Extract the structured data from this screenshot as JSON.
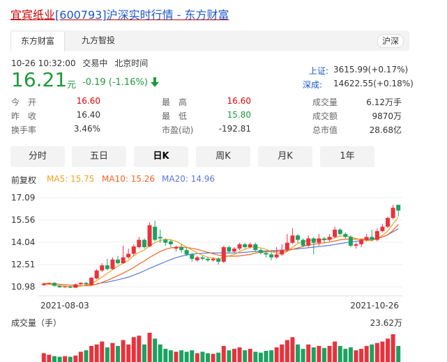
{
  "title": {
    "name": "宜宾纸业",
    "code": "[600793]",
    "rest": "沪深实时行情 - 东方财富"
  },
  "tabs": [
    {
      "label": "东方财富",
      "active": true
    },
    {
      "label": "九方智投",
      "active": false
    }
  ],
  "market_badge": "沪深",
  "meta": {
    "time": "10-26 10:32:00",
    "status": "交易中",
    "tz": "北京时间"
  },
  "price": {
    "value": "16.21",
    "unit": "元",
    "change": "-0.19 (-1.16%)",
    "arrow": "down-arrow-icon"
  },
  "indices": [
    {
      "name": "上证:",
      "value": "3615.99(+0.17%)"
    },
    {
      "name": "深成:",
      "value": "14622.55(+0.18%)"
    }
  ],
  "stats": [
    {
      "label": "今　开",
      "value": "16.60",
      "color": "#e00000"
    },
    {
      "label": "最　高",
      "value": "16.60",
      "color": "#e00000"
    },
    {
      "label": "成交量",
      "value": "6.12万手",
      "color": "#333333"
    },
    {
      "label": "昨　收",
      "value": "16.40",
      "color": "#333333"
    },
    {
      "label": "最　低",
      "value": "15.80",
      "color": "#1d9a3a"
    },
    {
      "label": "成交额",
      "value": "9870万",
      "color": "#333333"
    },
    {
      "label": "换手率",
      "value": "3.46%",
      "color": "#333333"
    },
    {
      "label": "市盈(动)",
      "value": "-192.81",
      "color": "#333333"
    },
    {
      "label": "总市值",
      "value": "28.68亿",
      "color": "#333333"
    }
  ],
  "period_buttons": [
    {
      "label": "分时",
      "active": false
    },
    {
      "label": "五日",
      "active": false
    },
    {
      "label": "日K",
      "active": true
    },
    {
      "label": "周K",
      "active": false
    },
    {
      "label": "月K",
      "active": false
    },
    {
      "label": "1年",
      "active": false
    }
  ],
  "ma_legend": {
    "adj": "前复权",
    "ma5": "MA5: 15.75",
    "ma10": "MA10: 15.26",
    "ma20": "MA20: 14.96"
  },
  "colors": {
    "up": "#e8323c",
    "down": "#1aa260",
    "ma5": "#f0a020",
    "ma10": "#f06420",
    "ma20": "#5a78d8"
  },
  "chart_data": {
    "type": "candlestick",
    "y_ticks": [
      "17.09",
      "15.56",
      "14.04",
      "12.51",
      "10.98"
    ],
    "ylim": [
      10.98,
      17.09
    ],
    "x_labels": [
      "2021-08-03",
      "2021-10-26"
    ],
    "volume_label": "成交量（手）",
    "volume_max_label": "23.62万",
    "candles": [
      [
        11.1,
        11.2,
        11.05,
        11.25
      ],
      [
        11.2,
        11.25,
        11.15,
        11.28
      ],
      [
        11.25,
        11.05,
        11.0,
        11.3
      ],
      [
        11.05,
        10.95,
        10.92,
        11.1
      ],
      [
        10.95,
        11.0,
        10.9,
        11.05
      ],
      [
        11.0,
        10.92,
        10.88,
        11.05
      ],
      [
        10.92,
        11.15,
        10.9,
        11.2
      ],
      [
        11.15,
        11.25,
        11.1,
        11.3
      ],
      [
        11.25,
        11.15,
        11.1,
        11.3
      ],
      [
        11.1,
        11.6,
        11.05,
        11.65
      ],
      [
        11.55,
        12.1,
        11.5,
        12.2
      ],
      [
        12.1,
        12.45,
        12.0,
        12.6
      ],
      [
        12.45,
        12.2,
        12.1,
        12.9
      ],
      [
        12.2,
        12.85,
        12.15,
        13.0
      ],
      [
        12.85,
        12.6,
        12.5,
        13.1
      ],
      [
        12.6,
        13.0,
        12.55,
        13.8
      ],
      [
        13.0,
        13.25,
        12.9,
        13.6
      ],
      [
        13.25,
        13.75,
        13.1,
        13.9
      ],
      [
        13.7,
        14.2,
        13.6,
        14.4
      ],
      [
        14.2,
        13.7,
        13.6,
        14.3
      ],
      [
        13.75,
        15.2,
        13.7,
        15.4
      ],
      [
        15.1,
        14.2,
        14.1,
        15.5
      ],
      [
        14.4,
        14.3,
        14.0,
        14.9
      ],
      [
        14.2,
        14.0,
        13.8,
        14.3
      ],
      [
        14.1,
        13.9,
        13.7,
        14.2
      ],
      [
        13.6,
        13.7,
        13.4,
        13.8
      ],
      [
        13.7,
        13.5,
        13.3,
        13.9
      ],
      [
        13.5,
        13.2,
        13.1,
        13.7
      ],
      [
        13.2,
        12.9,
        12.7,
        13.3
      ],
      [
        12.8,
        13.0,
        12.7,
        13.1
      ],
      [
        13.0,
        12.9,
        12.8,
        13.1
      ],
      [
        12.9,
        12.8,
        12.7,
        13.0
      ],
      [
        12.8,
        12.9,
        12.7,
        13.0
      ],
      [
        12.9,
        12.7,
        12.5,
        13.0
      ],
      [
        12.7,
        13.7,
        12.6,
        13.8
      ],
      [
        13.7,
        13.4,
        13.3,
        13.8
      ],
      [
        13.4,
        13.6,
        13.3,
        13.7
      ],
      [
        13.6,
        13.9,
        13.5,
        14.0
      ],
      [
        13.9,
        13.7,
        13.6,
        14.0
      ],
      [
        13.7,
        13.9,
        13.6,
        14.0
      ],
      [
        13.9,
        13.5,
        13.4,
        14.0
      ],
      [
        13.5,
        13.3,
        13.2,
        13.6
      ],
      [
        13.3,
        13.2,
        13.0,
        13.4
      ],
      [
        13.2,
        13.0,
        12.8,
        13.4
      ],
      [
        13.0,
        13.2,
        12.9,
        13.7
      ],
      [
        13.2,
        13.5,
        13.1,
        13.9
      ],
      [
        13.5,
        14.0,
        13.4,
        14.6
      ],
      [
        14.0,
        14.5,
        13.9,
        15.0
      ],
      [
        14.5,
        14.2,
        14.0,
        14.6
      ],
      [
        14.2,
        13.8,
        13.7,
        14.3
      ],
      [
        13.8,
        14.3,
        13.7,
        14.5
      ],
      [
        14.3,
        14.0,
        13.2,
        14.4
      ],
      [
        14.0,
        14.3,
        13.8,
        14.6
      ],
      [
        14.3,
        14.2,
        14.0,
        14.4
      ],
      [
        14.2,
        14.4,
        14.1,
        14.6
      ],
      [
        14.4,
        14.9,
        14.3,
        15.1
      ],
      [
        14.9,
        14.6,
        14.5,
        15.0
      ],
      [
        14.6,
        14.4,
        14.3,
        14.7
      ],
      [
        14.4,
        13.8,
        13.7,
        14.5
      ],
      [
        13.8,
        13.9,
        13.6,
        14.0
      ],
      [
        13.9,
        14.2,
        13.7,
        14.3
      ],
      [
        14.2,
        14.4,
        14.1,
        14.6
      ],
      [
        14.4,
        14.2,
        14.1,
        14.9
      ],
      [
        14.2,
        14.8,
        14.1,
        15.0
      ],
      [
        14.8,
        15.1,
        14.7,
        15.3
      ],
      [
        15.1,
        15.7,
        15.0,
        15.8
      ],
      [
        15.7,
        16.4,
        15.6,
        16.6
      ],
      [
        16.6,
        16.21,
        15.8,
        16.6
      ]
    ],
    "ma5": [
      11.12,
      11.15,
      11.1,
      11.05,
      11.02,
      11.0,
      10.99,
      11.03,
      11.1,
      11.2,
      11.4,
      11.65,
      11.9,
      12.15,
      12.4,
      12.6,
      12.8,
      13.1,
      13.35,
      13.5,
      13.8,
      14.0,
      14.15,
      14.25,
      14.2,
      14.1,
      13.9,
      13.7,
      13.5,
      13.3,
      13.15,
      13.0,
      12.95,
      12.9,
      13.0,
      13.1,
      13.2,
      13.4,
      13.55,
      13.7,
      13.7,
      13.65,
      13.55,
      13.4,
      13.3,
      13.25,
      13.4,
      13.7,
      13.95,
      14.1,
      14.15,
      14.2,
      14.2,
      14.2,
      14.25,
      14.35,
      14.45,
      14.5,
      14.4,
      14.3,
      14.2,
      14.15,
      14.15,
      14.3,
      14.5,
      14.8,
      15.3,
      15.75
    ],
    "ma10": [
      11.2,
      11.2,
      11.18,
      11.15,
      11.12,
      11.1,
      11.08,
      11.06,
      11.05,
      11.08,
      11.15,
      11.28,
      11.42,
      11.58,
      11.75,
      11.92,
      12.1,
      12.3,
      12.55,
      12.75,
      13.0,
      13.2,
      13.4,
      13.55,
      13.65,
      13.7,
      13.7,
      13.68,
      13.62,
      13.55,
      13.45,
      13.35,
      13.25,
      13.15,
      13.1,
      13.08,
      13.08,
      13.1,
      13.15,
      13.2,
      13.3,
      13.35,
      13.38,
      13.4,
      13.4,
      13.4,
      13.45,
      13.55,
      13.65,
      13.75,
      13.85,
      13.9,
      13.95,
      14.0,
      14.05,
      14.12,
      14.2,
      14.25,
      14.25,
      14.25,
      14.25,
      14.25,
      14.25,
      14.3,
      14.4,
      14.55,
      14.85,
      15.26
    ],
    "ma20": [
      null,
      null,
      null,
      null,
      null,
      null,
      null,
      null,
      null,
      null,
      11.2,
      11.25,
      11.3,
      11.38,
      11.46,
      11.55,
      11.65,
      11.78,
      11.92,
      12.08,
      12.25,
      12.4,
      12.55,
      12.7,
      12.85,
      12.98,
      13.08,
      13.16,
      13.22,
      13.26,
      13.28,
      13.3,
      13.3,
      13.3,
      13.3,
      13.3,
      13.3,
      13.32,
      13.35,
      13.38,
      13.4,
      13.42,
      13.44,
      13.46,
      13.48,
      13.5,
      13.52,
      13.55,
      13.58,
      13.62,
      13.66,
      13.7,
      13.74,
      13.78,
      13.82,
      13.88,
      13.94,
      14.0,
      14.05,
      14.1,
      14.15,
      14.2,
      14.25,
      14.32,
      14.4,
      14.55,
      14.75,
      14.96
    ],
    "volume_bars_relative": [
      0.3,
      0.25,
      0.2,
      0.18,
      0.2,
      0.18,
      0.22,
      0.35,
      0.4,
      0.55,
      0.6,
      0.7,
      0.5,
      0.65,
      0.55,
      0.75,
      0.6,
      0.85,
      0.9,
      0.6,
      1.0,
      0.8,
      0.6,
      0.45,
      0.4,
      0.35,
      0.4,
      0.35,
      0.4,
      0.3,
      0.35,
      0.3,
      0.28,
      0.32,
      0.55,
      0.4,
      0.45,
      0.5,
      0.4,
      0.45,
      0.35,
      0.32,
      0.38,
      0.4,
      0.5,
      0.6,
      0.75,
      0.85,
      0.6,
      0.45,
      0.6,
      0.5,
      0.55,
      0.48,
      0.55,
      0.7,
      0.55,
      0.45,
      0.5,
      0.4,
      0.45,
      0.55,
      0.6,
      0.65,
      0.7,
      0.8,
      0.95,
      0.55
    ]
  }
}
